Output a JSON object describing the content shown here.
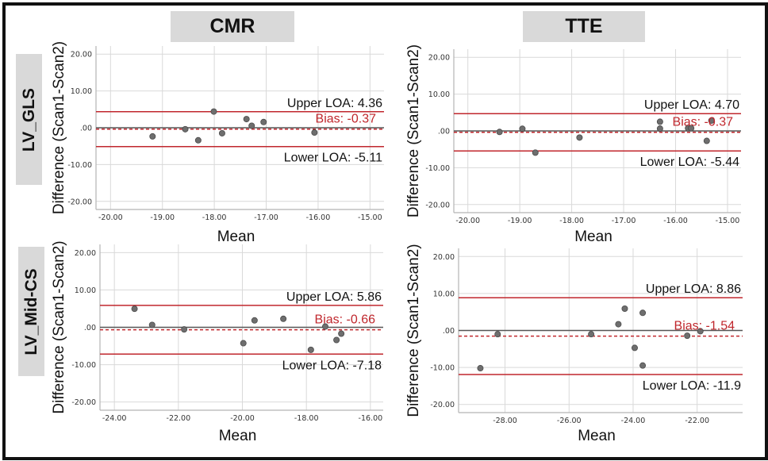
{
  "column_headers": [
    "CMR",
    "TTE"
  ],
  "row_headers": [
    "LV_GLS",
    "LV_Mid-CS"
  ],
  "colors": {
    "loa_line": "#c0272d",
    "bias_line": "#c0272d",
    "bias_text": "#c0272d",
    "zero_line": "#555555",
    "point_fill": "#6e6e6e",
    "point_stroke": "#4a4a4a",
    "grid": "#d9d9d9",
    "header_bg": "#d9d9d9"
  },
  "chart_data": [
    {
      "type": "scatter",
      "title": "CMR - LV_GLS",
      "xlabel": "Mean",
      "ylabel": "Difference (Scan1-Scan2)",
      "xlim": [
        -20.28,
        -14.73
      ],
      "ylim": [
        -22.2,
        22.2
      ],
      "xticks": [
        -20,
        -19,
        -18,
        -17,
        -16,
        -15
      ],
      "xtick_labels": [
        "-20.00",
        "-19.00",
        "-18.00",
        "-17.00",
        "-16.00",
        "-15.00"
      ],
      "yticks": [
        20,
        10,
        0,
        -10,
        -20
      ],
      "ytick_labels": [
        "20.00",
        "10.00",
        ".00",
        "-10.00",
        "-20.00"
      ],
      "grid": true,
      "x": [
        -19.19,
        -18.56,
        -18.31,
        -18.01,
        -17.85,
        -17.38,
        -17.28,
        -17.05,
        -16.07
      ],
      "y": [
        -2.35,
        -0.4,
        -3.4,
        4.4,
        -1.5,
        2.35,
        0.55,
        1.55,
        -1.3
      ],
      "upper_loa": 4.36,
      "bias": -0.37,
      "lower_loa": -5.11,
      "upper_label": "Upper LOA: 4.36",
      "bias_label": "Bias: -0.37",
      "lower_label": "Lower LOA: -5.11"
    },
    {
      "type": "scatter",
      "title": "TTE - LV_GLS",
      "xlabel": "Mean",
      "ylabel": "Difference (Scan1-Scan2)",
      "xlim": [
        -20.27,
        -14.74
      ],
      "ylim": [
        -22.2,
        22.2
      ],
      "xticks": [
        -20,
        -19,
        -18,
        -17,
        -16,
        -15
      ],
      "xtick_labels": [
        "-20.00",
        "-19.00",
        "-18.00",
        "-17.00",
        "-16.00",
        "-15.00"
      ],
      "yticks": [
        20,
        10,
        0,
        -10,
        -20
      ],
      "ytick_labels": [
        "20.00",
        "10.00",
        ".00",
        "-10.00",
        "-20.00"
      ],
      "grid": true,
      "x": [
        -19.39,
        -18.95,
        -18.7,
        -17.85,
        -16.3,
        -16.3,
        -15.76,
        -15.7,
        -15.4,
        -15.31
      ],
      "y": [
        -0.28,
        0.58,
        -5.9,
        -1.8,
        2.5,
        0.64,
        0.73,
        0.73,
        -2.7,
        2.8
      ],
      "upper_loa": 4.7,
      "bias": -0.37,
      "lower_loa": -5.44,
      "upper_label": "Upper LOA: 4.70",
      "bias_label": "Bias: -0.37",
      "lower_label": "Lower LOA: -5.44"
    },
    {
      "type": "scatter",
      "title": "CMR - LV_Mid-CS",
      "xlabel": "Mean",
      "ylabel": "Difference (Scan1-Scan2)",
      "xlim": [
        -24.45,
        -15.6
      ],
      "ylim": [
        -22.2,
        22.2
      ],
      "xticks": [
        -24,
        -22,
        -20,
        -18,
        -16
      ],
      "xtick_labels": [
        "-24.00",
        "-22.00",
        "-20.00",
        "-18.00",
        "-16.00"
      ],
      "yticks": [
        20,
        10,
        0,
        -10,
        -20
      ],
      "ytick_labels": [
        "20.00",
        "10.00",
        ".00",
        "-10.00",
        "-20.00"
      ],
      "grid": true,
      "x": [
        -23.37,
        -22.82,
        -21.82,
        -19.97,
        -19.62,
        -18.72,
        -17.86,
        -17.41,
        -17.06,
        -16.91
      ],
      "y": [
        4.96,
        0.64,
        -0.57,
        -4.26,
        1.85,
        2.28,
        -6.03,
        0.2,
        -3.4,
        -1.7
      ],
      "upper_loa": 5.86,
      "bias": -0.66,
      "lower_loa": -7.18,
      "upper_label": "Upper LOA: 5.86",
      "bias_label": "Bias: -0.66",
      "lower_label": "Lower LOA: -7.18"
    },
    {
      "type": "scatter",
      "title": "TTE - LV_Mid-CS",
      "xlabel": "Mean",
      "ylabel": "Difference (Scan1-Scan2)",
      "xlim": [
        -29.45,
        -20.58
      ],
      "ylim": [
        -22.2,
        22.2
      ],
      "xticks": [
        -28,
        -26,
        -24,
        -22
      ],
      "xtick_labels": [
        "-28.00",
        "-26.00",
        "-24.00",
        "-22.00"
      ],
      "yticks": [
        20,
        10,
        0,
        -10,
        -20
      ],
      "ytick_labels": [
        "20.00",
        "10.00",
        ".00",
        "-10.00",
        "-20.00"
      ],
      "grid": true,
      "x": [
        -28.77,
        -28.23,
        -25.31,
        -24.46,
        -24.26,
        -23.95,
        -23.7,
        -23.7,
        -22.31,
        -21.9
      ],
      "y": [
        -10.2,
        -1.0,
        -1.0,
        1.7,
        5.9,
        -4.7,
        4.76,
        -9.47,
        -1.42,
        -0.2
      ],
      "upper_loa": 8.86,
      "bias": -1.54,
      "lower_loa": -11.9,
      "upper_label": "Upper LOA: 8.86",
      "bias_label": "Bias: -1.54",
      "lower_label": "Lower LOA: -11.9"
    }
  ]
}
